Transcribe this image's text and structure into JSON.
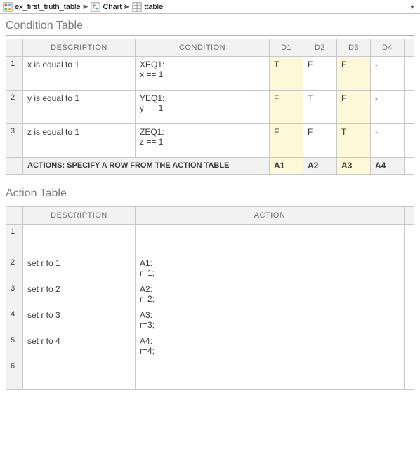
{
  "breadcrumb": {
    "items": [
      {
        "label": "ex_first_truth_table"
      },
      {
        "label": "Chart"
      },
      {
        "label": "ttable"
      }
    ]
  },
  "condition_table": {
    "title": "Condition Table",
    "headers": {
      "description": "DESCRIPTION",
      "condition": "CONDITION",
      "d": [
        "D1",
        "D2",
        "D3",
        "D4"
      ]
    },
    "rows": [
      {
        "idx": "1",
        "description": "x is equal to 1",
        "condition": "XEQ1:\nx == 1",
        "d": [
          "T",
          "F",
          "F",
          "-"
        ],
        "hl": [
          true,
          false,
          true,
          false
        ]
      },
      {
        "idx": "2",
        "description": "y is equal to 1",
        "condition": "YEQ1:\ny == 1",
        "d": [
          "F",
          "T",
          "F",
          "-"
        ],
        "hl": [
          true,
          false,
          true,
          false
        ]
      },
      {
        "idx": "3",
        "description": "z is equal to 1",
        "condition": "ZEQ1:\nz == 1",
        "d": [
          "F",
          "F",
          "T",
          "-"
        ],
        "hl": [
          true,
          false,
          true,
          false
        ]
      }
    ],
    "actions_row": {
      "label": "ACTIONS: SPECIFY A ROW FROM THE ACTION TABLE",
      "a": [
        "A1",
        "A2",
        "A3",
        "A4"
      ],
      "hl": [
        true,
        false,
        true,
        false
      ]
    }
  },
  "action_table": {
    "title": "Action Table",
    "headers": {
      "description": "DESCRIPTION",
      "action": "ACTION"
    },
    "rows": [
      {
        "idx": "1",
        "description": "",
        "action": ""
      },
      {
        "idx": "2",
        "description": "set r to 1",
        "action": "A1:\nr=1;"
      },
      {
        "idx": "3",
        "description": "set r to 2",
        "action": "A2:\nr=2;"
      },
      {
        "idx": "4",
        "description": "set r to 3",
        "action": "A3:\nr=3;"
      },
      {
        "idx": "5",
        "description": "set r to 4",
        "action": "A4:\nr=4;"
      },
      {
        "idx": "6",
        "description": "",
        "action": ""
      }
    ]
  },
  "colors": {
    "highlight": "#fdf8d8",
    "header_bg": "#f2f2f2",
    "border": "#c8c8c8",
    "text_muted": "#6a6a6a"
  }
}
